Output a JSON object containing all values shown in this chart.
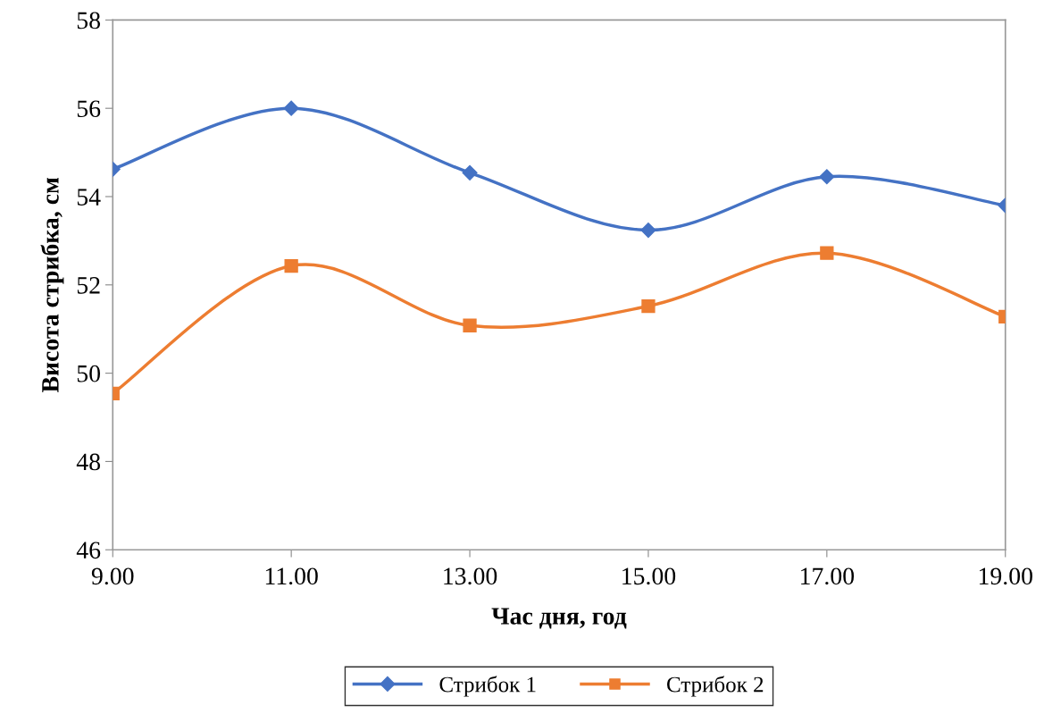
{
  "chart_data": {
    "type": "line",
    "xlabel": "Час дня, год",
    "ylabel": "Висота стрибка, см",
    "x": [
      9,
      11,
      13,
      15,
      17,
      19
    ],
    "series": [
      {
        "name": "Стрибок 1",
        "color": "#4472c4",
        "marker": "diamond",
        "values": [
          54.62,
          56.0,
          54.54,
          53.24,
          54.45,
          53.8
        ]
      },
      {
        "name": "Стрибок 2",
        "color": "#ed7d31",
        "marker": "square",
        "values": [
          49.54,
          52.43,
          51.08,
          51.52,
          52.72,
          51.28
        ]
      }
    ],
    "xlim": [
      9,
      19
    ],
    "xticks": [
      {
        "value": 9,
        "label": "9.00"
      },
      {
        "value": 11,
        "label": "11.00"
      },
      {
        "value": 13,
        "label": "13.00"
      },
      {
        "value": 15,
        "label": "15.00"
      },
      {
        "value": 17,
        "label": "17.00"
      },
      {
        "value": 19,
        "label": "19.00"
      }
    ],
    "ylim": [
      46,
      58
    ],
    "yticks": [
      46,
      48,
      50,
      52,
      54,
      56,
      58
    ],
    "grid": false,
    "legend": "bottom",
    "line_style": "solid"
  }
}
